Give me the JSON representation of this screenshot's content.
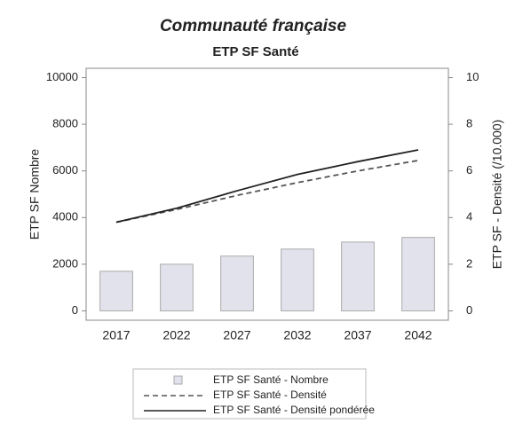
{
  "chart_data": {
    "type": "bar_line",
    "title": "Communauté française",
    "subtitle": "ETP SF Santé",
    "ylabel": "ETP SF Nombre",
    "y2label": "ETP SF - Densité (/10.000)",
    "categories": [
      "2017",
      "2022",
      "2027",
      "2032",
      "2037",
      "2042"
    ],
    "ylim": [
      -400,
      10400
    ],
    "yticks": [
      0,
      2000,
      4000,
      6000,
      8000,
      10000
    ],
    "y2lim": [
      -0.4,
      10.4
    ],
    "y2ticks": [
      0,
      2,
      4,
      6,
      8,
      10
    ],
    "series": [
      {
        "name": "ETP SF Santé - Nombre",
        "kind": "bar",
        "color": "#e2e2ec",
        "axis": "y",
        "values": [
          1700,
          2000,
          2350,
          2650,
          2950,
          3150
        ]
      },
      {
        "name": "ETP SF Santé - Densité",
        "kind": "line",
        "line_style": "dashed",
        "color": "#555555",
        "axis": "y2",
        "values": [
          3.8,
          4.35,
          4.95,
          5.5,
          6.0,
          6.45
        ]
      },
      {
        "name": "ETP SF Santé - Densité pondérée",
        "kind": "line",
        "line_style": "solid",
        "color": "#222222",
        "axis": "y2",
        "values": [
          3.8,
          4.4,
          5.15,
          5.85,
          6.4,
          6.9
        ]
      }
    ]
  }
}
